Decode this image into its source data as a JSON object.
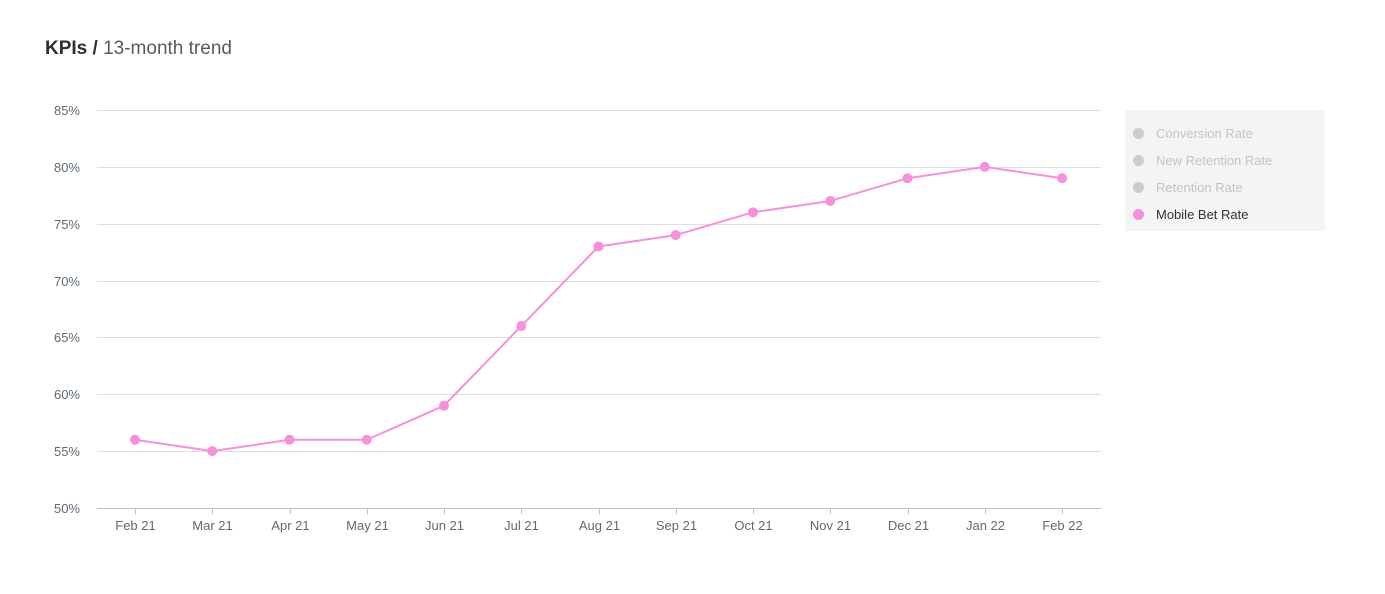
{
  "header": {
    "title_strong": "KPIs /",
    "title_light": "13-month trend"
  },
  "legend": {
    "items": [
      {
        "label": "Conversion Rate",
        "dot_color": "#cccccc",
        "text_color": "#c4c4c4",
        "active": false
      },
      {
        "label": "New Retention Rate",
        "dot_color": "#cccccc",
        "text_color": "#c4c4c4",
        "active": false
      },
      {
        "label": "Retention Rate",
        "dot_color": "#cccccc",
        "text_color": "#c4c4c4",
        "active": false
      },
      {
        "label": "Mobile Bet Rate",
        "dot_color": "#f78fd9",
        "text_color": "#333333",
        "active": true
      }
    ]
  },
  "chart_data": {
    "type": "line",
    "title": "KPIs / 13-month trend",
    "categories": [
      "Feb 21",
      "Mar 21",
      "Apr 21",
      "May 21",
      "Jun 21",
      "Jul 21",
      "Aug 21",
      "Sep 21",
      "Oct 21",
      "Nov 21",
      "Dec 21",
      "Jan 22",
      "Feb 22"
    ],
    "series": [
      {
        "name": "Mobile Bet Rate",
        "color": "#f78fd9",
        "values": [
          56,
          55,
          56,
          56,
          59,
          66,
          73,
          74,
          76,
          77,
          79,
          80,
          79
        ]
      }
    ],
    "ylim": [
      50,
      85
    ],
    "yticks": [
      50,
      55,
      60,
      65,
      70,
      75,
      80,
      85
    ],
    "ytick_labels": [
      "50%",
      "55%",
      "60%",
      "65%",
      "70%",
      "75%",
      "80%",
      "85%"
    ],
    "xlabel": "",
    "ylabel": "",
    "grid": true,
    "legend_position": "right",
    "colors": {
      "grid": "#dcdfe2",
      "axis": "#b7c4cf",
      "tick_text": "#5d6a76"
    }
  }
}
